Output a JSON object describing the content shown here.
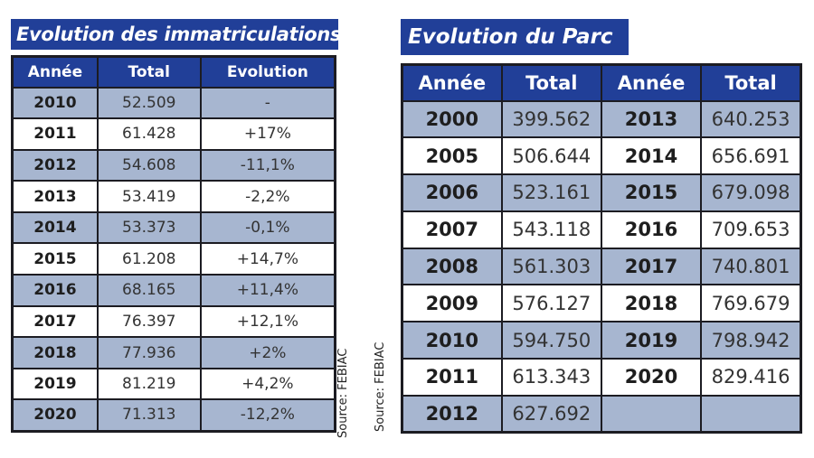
{
  "registrations": {
    "title": "Evolution des immatriculations",
    "headers": [
      "Année",
      "Total",
      "Evolution"
    ],
    "rows": [
      [
        "2010",
        "52.509",
        "-"
      ],
      [
        "2011",
        "61.428",
        "+17%"
      ],
      [
        "2012",
        "54.608",
        "-11,1%"
      ],
      [
        "2013",
        "53.419",
        "-2,2%"
      ],
      [
        "2014",
        "53.373",
        "-0,1%"
      ],
      [
        "2015",
        "61.208",
        "+14,7%"
      ],
      [
        "2016",
        "68.165",
        "+11,4%"
      ],
      [
        "2017",
        "76.397",
        "+12,1%"
      ],
      [
        "2018",
        "77.936",
        "+2%"
      ],
      [
        "2019",
        "81.219",
        "+4,2%"
      ],
      [
        "2020",
        "71.313",
        "-12,2%"
      ]
    ],
    "source": "Source: FEBIAC"
  },
  "fleet": {
    "title": "Evolution du Parc",
    "headers": [
      "Année",
      "Total",
      "Année",
      "Total"
    ],
    "rows": [
      [
        "2000",
        "399.562",
        "2013",
        "640.253"
      ],
      [
        "2005",
        "506.644",
        "2014",
        "656.691"
      ],
      [
        "2006",
        "523.161",
        "2015",
        "679.098"
      ],
      [
        "2007",
        "543.118",
        "2016",
        "709.653"
      ],
      [
        "2008",
        "561.303",
        "2017",
        "740.801"
      ],
      [
        "2009",
        "576.127",
        "2018",
        "769.679"
      ],
      [
        "2010",
        "594.750",
        "2019",
        "798.942"
      ],
      [
        "2011",
        "613.343",
        "2020",
        "829.416"
      ],
      [
        "2012",
        "627.692",
        "",
        ""
      ]
    ],
    "source": "Source: FEBIAC"
  },
  "colors": {
    "header_blue": "#213f98",
    "row_alt": "#a7b6d0",
    "border": "#1c1c22"
  }
}
